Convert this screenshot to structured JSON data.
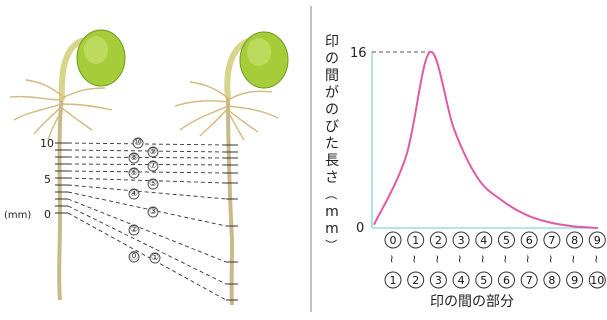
{
  "left_diagram": {
    "scale_ticks": [
      "10",
      "5",
      "0"
    ],
    "scale_unit": "(mm)",
    "mark_labels_top": [
      "⑩",
      "⑨",
      "⑧",
      "⑦",
      "⑥",
      "⑤",
      "④",
      "③",
      "②",
      "①",
      "⓪"
    ],
    "mark_labels_bottom": [
      "⑩",
      "⑨",
      "⑧",
      "⑦",
      "⑥",
      "⑤",
      "④",
      "③",
      "②",
      "①",
      "⓪"
    ]
  },
  "chart": {
    "ylabel": "印の間がのびた長さ（mm）",
    "yticks": [
      "16",
      "0"
    ],
    "xlabel": "印の間の部分",
    "segments_top": [
      "0",
      "1",
      "2",
      "3",
      "4",
      "5",
      "6",
      "7",
      "8",
      "9"
    ],
    "segments_bottom": [
      "1",
      "2",
      "3",
      "4",
      "5",
      "6",
      "7",
      "8",
      "9",
      "10"
    ],
    "tilde": "~"
  },
  "chart_data": {
    "type": "line",
    "categories": [
      "0~1",
      "1~2",
      "2~3",
      "3~4",
      "4~5",
      "5~6",
      "6~7",
      "7~8",
      "8~9",
      "9~10"
    ],
    "values": [
      0.3,
      6.5,
      16,
      9,
      4.5,
      2.5,
      1.2,
      0.5,
      0.15,
      0
    ],
    "ylim": [
      0,
      16
    ],
    "xlabel": "印の間の部分",
    "ylabel": "印の間がのびた長さ（mm）",
    "line_color": "#e05aa8",
    "axis_color": "#86d3dc",
    "grid": false
  }
}
